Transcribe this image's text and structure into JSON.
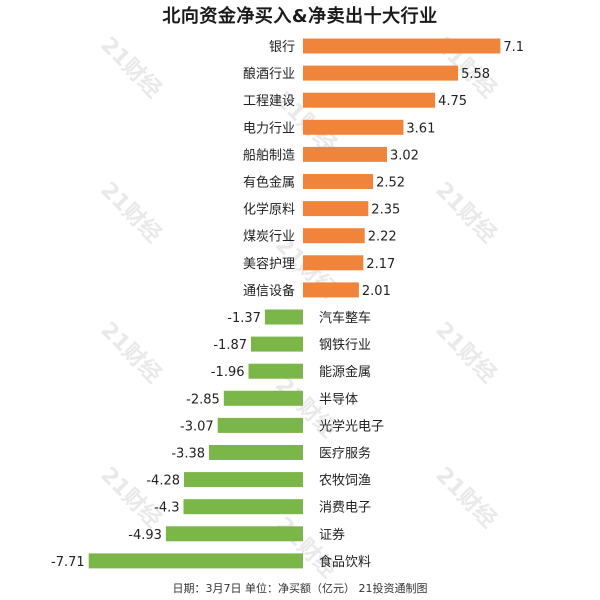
{
  "title": "北向资金净买入&净卖出十大行业",
  "footer": "日期：3月7日 单位：净买额（亿元） 21投资通制图",
  "watermark": "21财经",
  "colors": {
    "positive": "#f0843a",
    "negative": "#7ab648"
  },
  "chart_data": {
    "type": "bar",
    "orientation": "horizontal",
    "title": "北向资金净买入&净卖出十大行业",
    "unit": "净买额（亿元）",
    "categories": [
      "银行",
      "酿酒行业",
      "工程建设",
      "电力行业",
      "船舶制造",
      "有色金属",
      "化学原料",
      "煤炭行业",
      "美容护理",
      "通信设备",
      "汽车整车",
      "钢铁行业",
      "能源金属",
      "半导体",
      "光学光电子",
      "医疗服务",
      "农牧饲渔",
      "消费电子",
      "证券",
      "食品饮料"
    ],
    "values": [
      7.1,
      5.58,
      4.75,
      3.61,
      3.02,
      2.52,
      2.35,
      2.22,
      2.17,
      2.01,
      -1.37,
      -1.87,
      -1.96,
      -2.85,
      -3.07,
      -3.38,
      -4.28,
      -4.3,
      -4.93,
      -7.71
    ],
    "value_labels": [
      "7.1",
      "5.58",
      "4.75",
      "3.61",
      "3.02",
      "2.52",
      "2.35",
      "2.22",
      "2.17",
      "2.01",
      "-1.37",
      "-1.87",
      "-1.96",
      "-2.85",
      "-3.07",
      "-3.38",
      "-4.28",
      "-4.3",
      "-4.93",
      "-7.71"
    ],
    "grid": false,
    "legend": "none"
  }
}
